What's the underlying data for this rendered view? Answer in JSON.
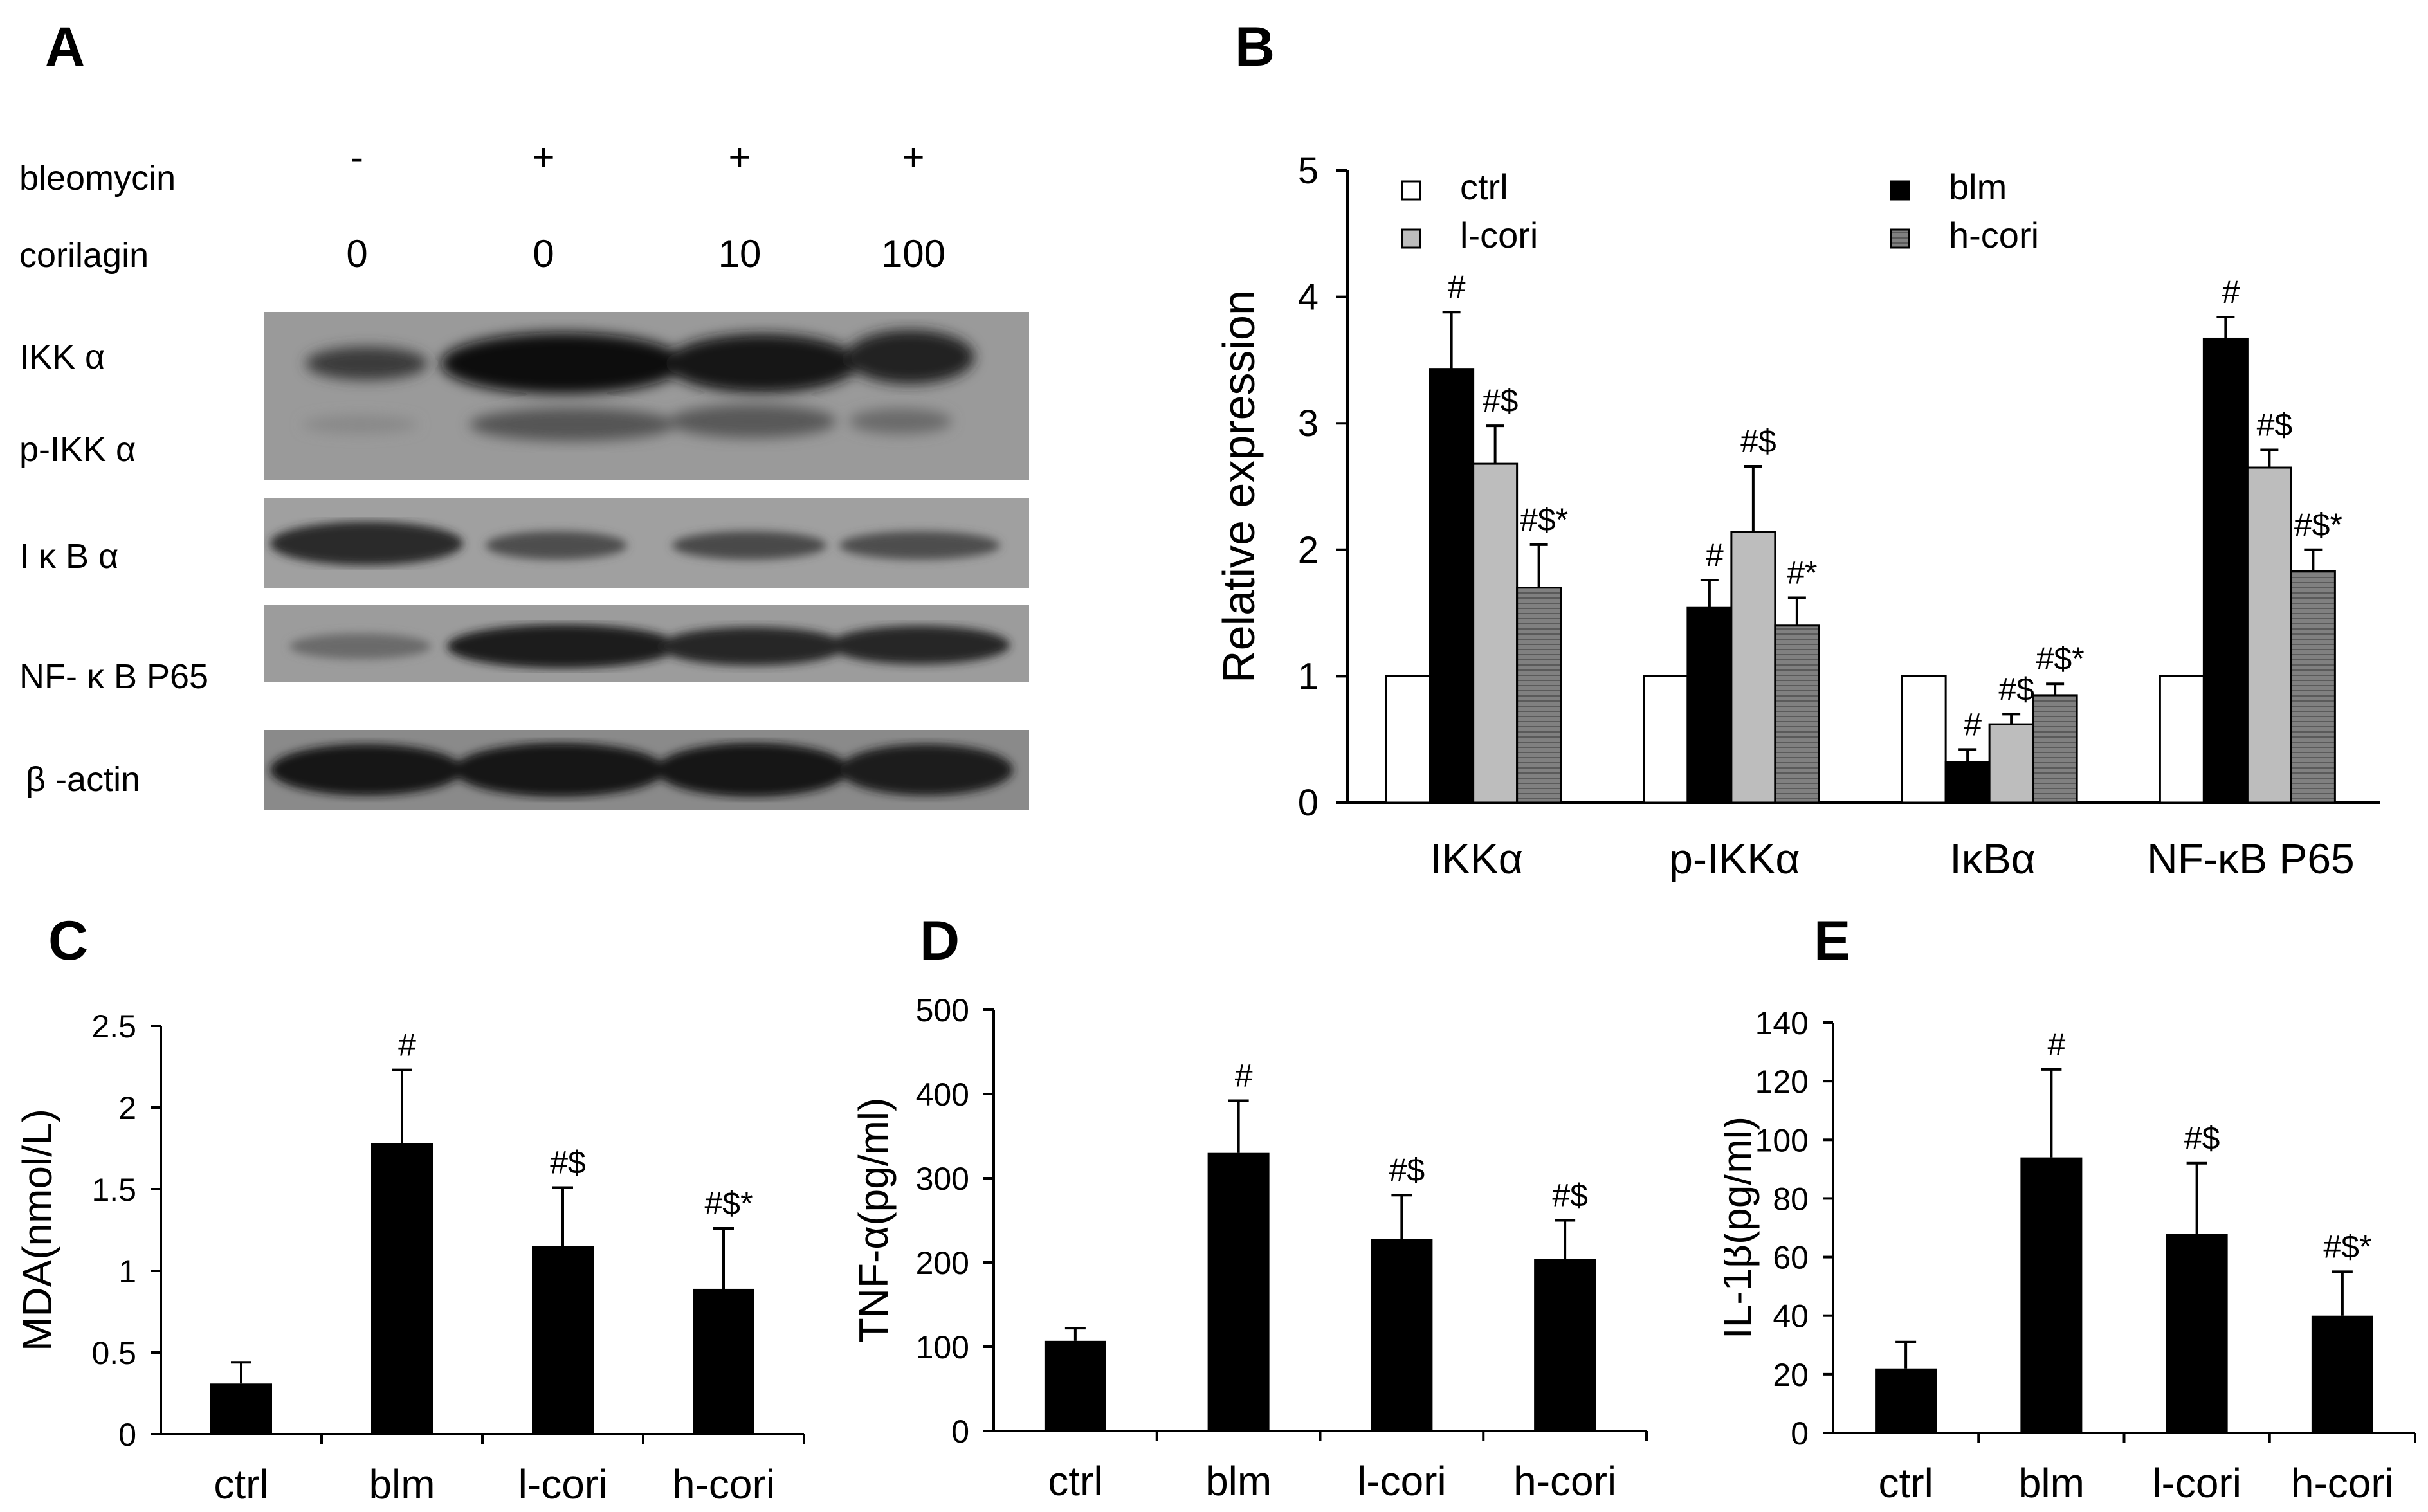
{
  "panels": {
    "a": "A",
    "b": "B",
    "c": "C",
    "d": "D",
    "e": "E"
  },
  "blot": {
    "row_labels": {
      "bleomycin": "bleomycin",
      "corilagin": "corilagin"
    },
    "bleomycin": [
      "-",
      "+",
      "+",
      "+"
    ],
    "corilagin": [
      "0",
      "0",
      "10",
      "100"
    ],
    "bands": [
      "IKK α",
      "p-IKK α",
      "I κ B α",
      "NF- κ B P65",
      "β -actin"
    ]
  },
  "colors": {
    "ctrl": "#ffffff",
    "blm": "#000000",
    "l-cori": "#bdbdbd",
    "h-cori": "#7a7a7a",
    "axis": "#000000"
  },
  "chart_data": [
    {
      "id": "B",
      "type": "bar",
      "ylabel": "Relative expression",
      "ylim": [
        0,
        5
      ],
      "yticks": [
        "0",
        "1",
        "2",
        "3",
        "4",
        "5"
      ],
      "categories": [
        "IKKα",
        "p-IKKα",
        "IκBα",
        "NF-κB P65"
      ],
      "legend_placement": "top",
      "series": [
        {
          "name": "ctrl",
          "values": [
            1.0,
            1.0,
            1.0,
            1.0
          ],
          "errors": [
            0.01,
            0.01,
            0.01,
            0.01
          ],
          "labels": [
            "",
            "",
            "",
            ""
          ]
        },
        {
          "name": "blm",
          "values": [
            3.43,
            1.54,
            0.32,
            3.67
          ],
          "errors": [
            0.45,
            0.22,
            0.1,
            0.17
          ],
          "labels": [
            "#",
            "#",
            "#",
            "#"
          ]
        },
        {
          "name": "l-cori",
          "values": [
            2.68,
            2.14,
            0.62,
            2.65
          ],
          "errors": [
            0.3,
            0.52,
            0.08,
            0.14
          ],
          "labels": [
            "#$",
            "#$",
            "#$",
            "#$"
          ]
        },
        {
          "name": "h-cori",
          "values": [
            1.7,
            1.4,
            0.85,
            1.83
          ],
          "errors": [
            0.34,
            0.22,
            0.09,
            0.17
          ],
          "labels": [
            "#$*",
            "#*",
            "#$*",
            "#$*"
          ]
        }
      ]
    },
    {
      "id": "C",
      "type": "bar",
      "ylabel": "MDA(nmol/L)",
      "ylim": [
        0,
        2.5
      ],
      "yticks": [
        "0",
        "0.5",
        "1",
        "1.5",
        "2",
        "2.5"
      ],
      "categories": [
        "ctrl",
        "blm",
        "l-cori",
        "h-cori"
      ],
      "values": [
        0.31,
        1.78,
        1.15,
        0.89
      ],
      "errors": [
        0.13,
        0.45,
        0.36,
        0.37
      ],
      "labels": [
        "",
        "#",
        "#$",
        "#$*"
      ]
    },
    {
      "id": "D",
      "type": "bar",
      "ylabel": "TNF-α(pg/ml)",
      "ylim": [
        0,
        500
      ],
      "yticks": [
        "0",
        "100",
        "200",
        "300",
        "400",
        "500"
      ],
      "categories": [
        "ctrl",
        "blm",
        "l-cori",
        "h-cori"
      ],
      "values": [
        107,
        330,
        228,
        204
      ],
      "errors": [
        15,
        62,
        52,
        46
      ],
      "labels": [
        "",
        "#",
        "#$",
        "#$"
      ]
    },
    {
      "id": "E",
      "type": "bar",
      "ylabel": "IL-1β(pg/ml)",
      "ylim": [
        0,
        140
      ],
      "yticks": [
        "0",
        "20",
        "40",
        "60",
        "80",
        "100",
        "120",
        "140"
      ],
      "categories": [
        "ctrl",
        "blm",
        "l-cori",
        "h-cori"
      ],
      "values": [
        22,
        94,
        68,
        40
      ],
      "errors": [
        9,
        30,
        24,
        15
      ],
      "labels": [
        "",
        "#",
        "#$",
        "#$*"
      ]
    }
  ]
}
